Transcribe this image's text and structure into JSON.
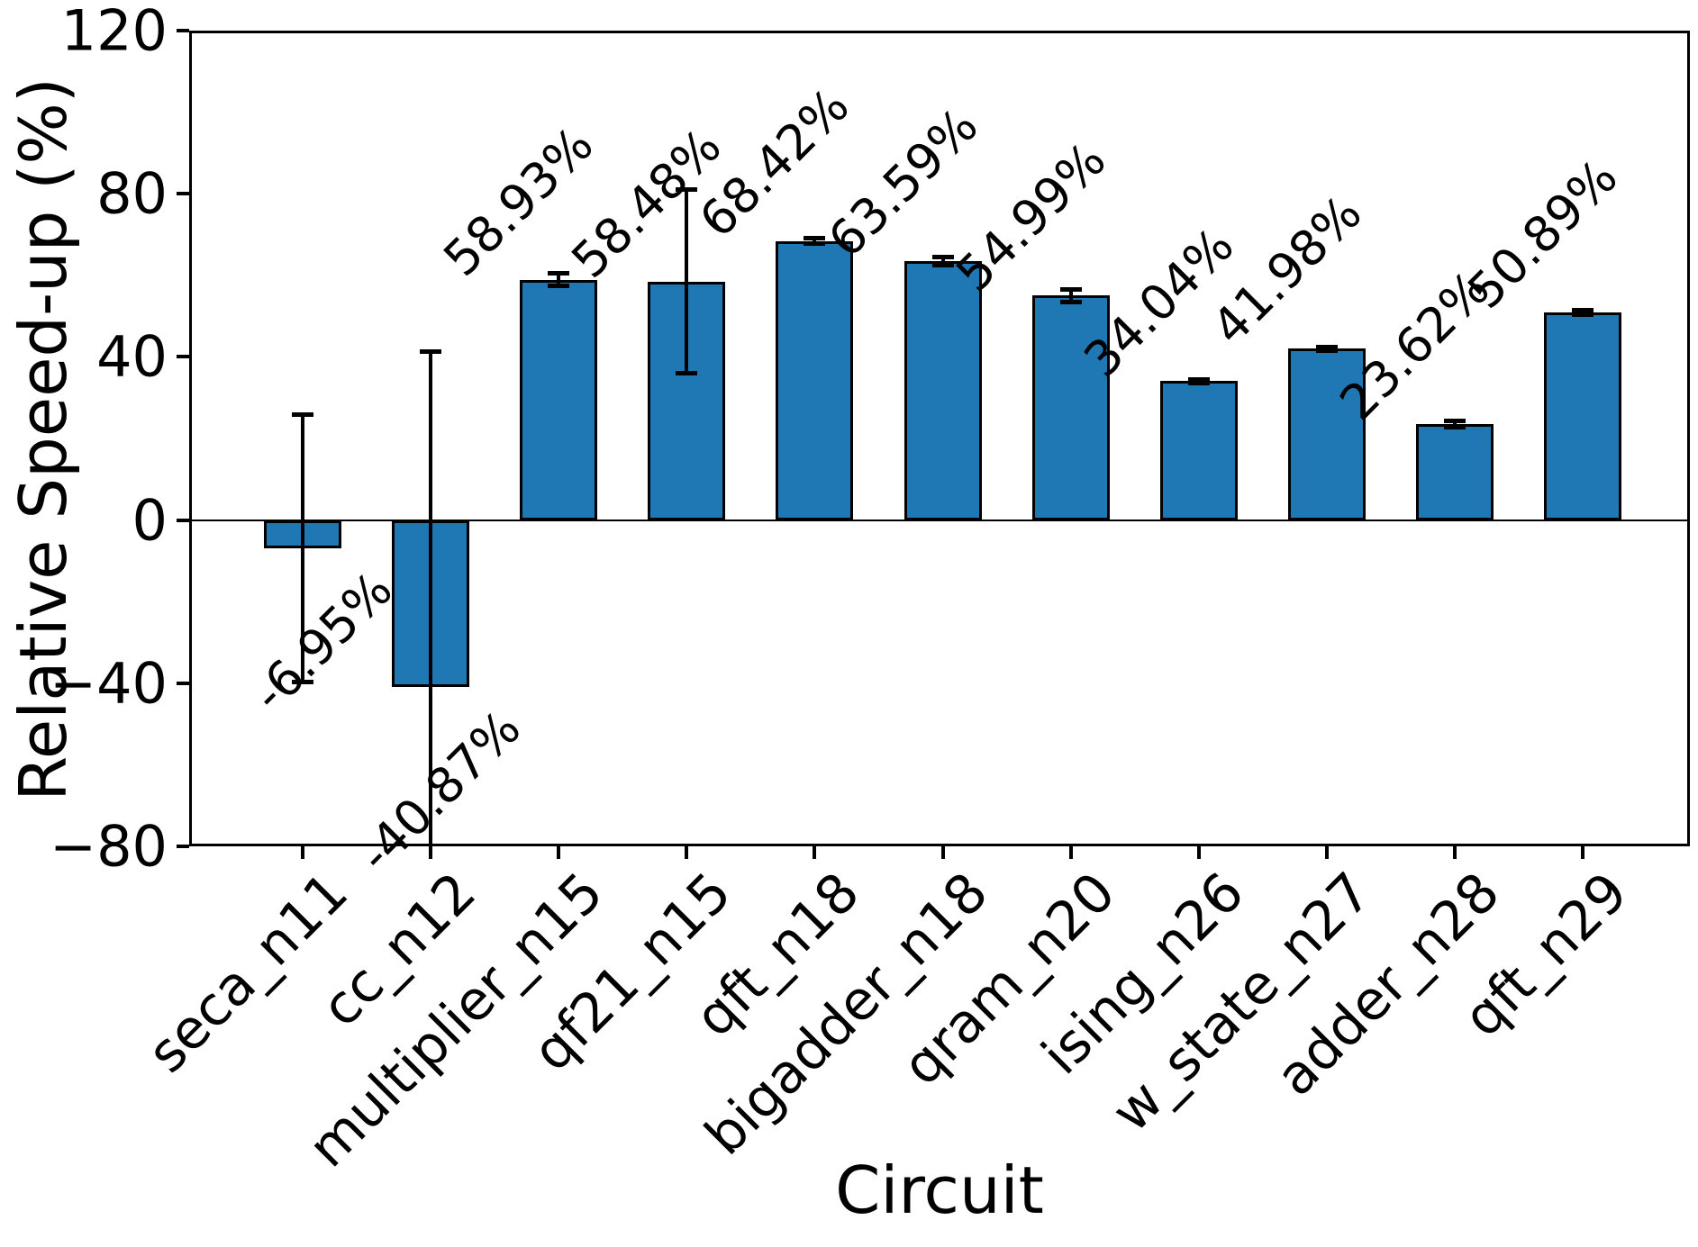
{
  "chart_data": {
    "type": "bar",
    "title": "",
    "xlabel": "Circuit",
    "ylabel": "Relative Speed-up (%)",
    "categories": [
      "seca_n11",
      "cc_n12",
      "multiplier_n15",
      "qf21_n15",
      "qft_n18",
      "bigadder_n18",
      "qram_n20",
      "ising_n26",
      "w_state_n27",
      "adder_n28",
      "qft_n29"
    ],
    "values": [
      -6.95,
      -40.87,
      58.93,
      58.48,
      68.42,
      63.59,
      54.99,
      34.04,
      41.98,
      23.62,
      50.89
    ],
    "errors": [
      32.8,
      82.3,
      1.6,
      22.6,
      0.7,
      1.1,
      1.7,
      0.6,
      0.6,
      0.9,
      0.6
    ],
    "value_labels": [
      "-6.95%",
      "-40.87%",
      "58.93%",
      "58.48%",
      "68.42%",
      "63.59%",
      "54.99%",
      "34.04%",
      "41.98%",
      "23.62%",
      "50.89%"
    ],
    "ylim": [
      -80,
      120
    ],
    "yticks": [
      120,
      80,
      40,
      0,
      -40,
      -80
    ],
    "ytick_labels": [
      "120",
      "80",
      "40",
      "0",
      "−40",
      "−80"
    ],
    "bar_color": "#1f77b4",
    "bar_edge_color": "#000000",
    "error_bar_color": "#000000",
    "axis_color": "#000000",
    "grid": false,
    "legend": null
  }
}
